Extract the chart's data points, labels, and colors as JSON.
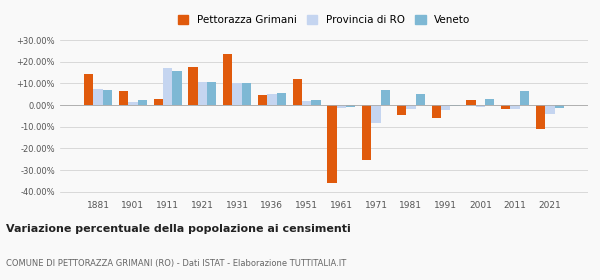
{
  "years": [
    1881,
    1901,
    1911,
    1921,
    1931,
    1936,
    1951,
    1961,
    1971,
    1981,
    1991,
    2001,
    2011,
    2021
  ],
  "pettorazza": [
    14.5,
    6.5,
    3.0,
    17.5,
    23.5,
    4.5,
    12.0,
    -36.0,
    -25.5,
    -4.5,
    -6.0,
    2.5,
    -2.0,
    -11.0
  ],
  "provincia": [
    7.5,
    1.5,
    17.0,
    10.5,
    10.0,
    5.0,
    2.0,
    -1.5,
    -8.5,
    -2.0,
    -2.5,
    -1.0,
    -2.0,
    -4.0
  ],
  "veneto": [
    7.0,
    2.5,
    15.5,
    10.5,
    10.0,
    5.5,
    2.5,
    -1.0,
    7.0,
    5.0,
    -0.5,
    3.0,
    6.5,
    -1.5
  ],
  "color_pettorazza": "#e05a0c",
  "color_provincia": "#c5d5f0",
  "color_veneto": "#7eb8d4",
  "title": "Variazione percentuale della popolazione ai censimenti",
  "subtitle": "COMUNE DI PETTORAZZA GRIMANI (RO) - Dati ISTAT - Elaborazione TUTTITALIA.IT",
  "ylim": [
    -42,
    33
  ],
  "yticks": [
    -40,
    -30,
    -20,
    -10,
    0,
    10,
    20,
    30
  ],
  "ytick_labels": [
    "-40.00%",
    "-30.00%",
    "-20.00%",
    "-10.00%",
    "0.00%",
    "+10.00%",
    "+20.00%",
    "+30.00%"
  ],
  "bar_width": 0.27,
  "background_color": "#f9f9f9",
  "grid_color": "#cccccc"
}
